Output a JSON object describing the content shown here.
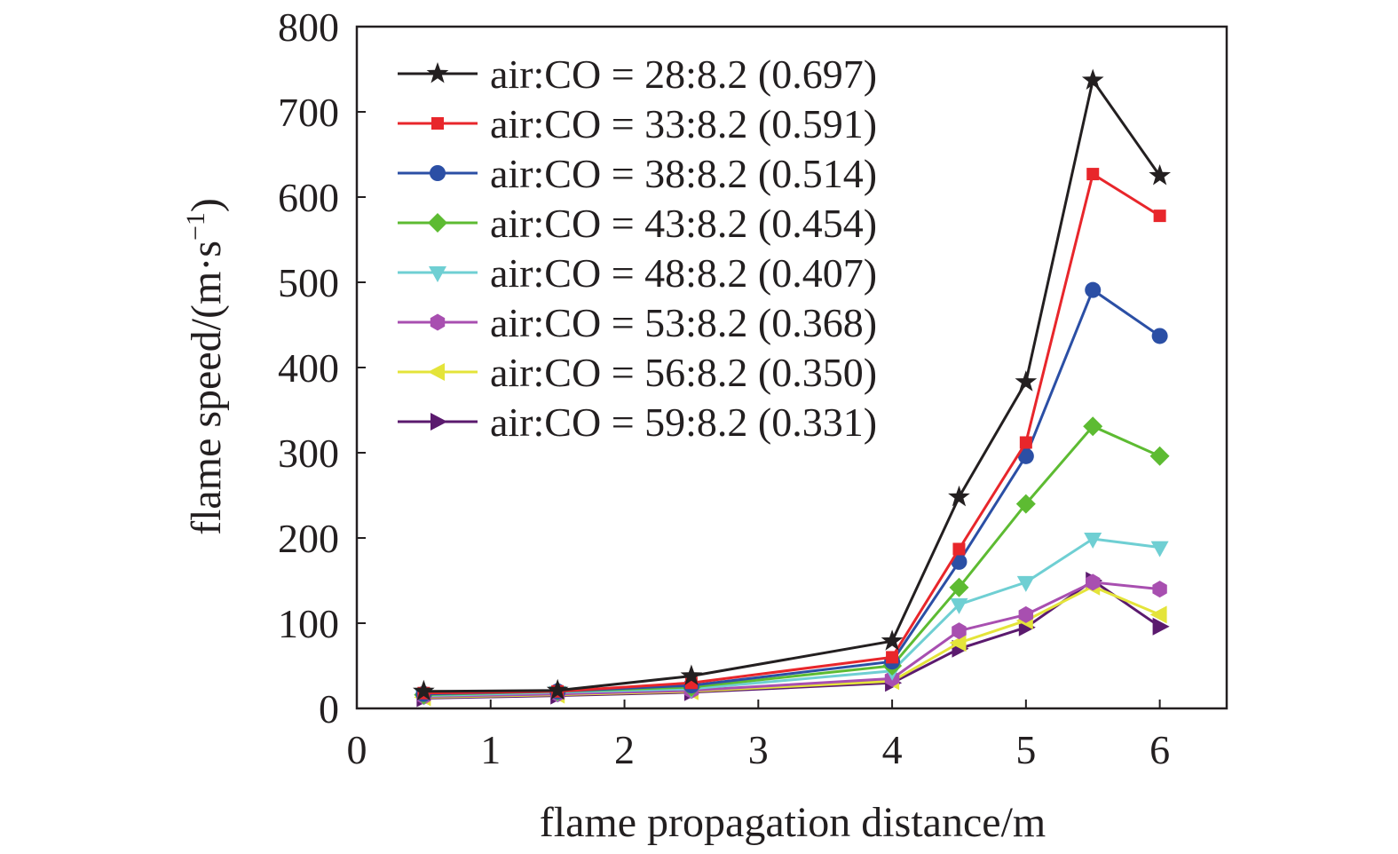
{
  "chart_data": {
    "type": "line",
    "xlabel": "flame propagation distance/m",
    "ylabel_main": "flame speed/(m·s",
    "ylabel_sup": "−1",
    "ylabel_close": ")",
    "xlim": [
      0,
      6.5
    ],
    "ylim": [
      0,
      800
    ],
    "xticks": [
      "0",
      "1",
      "2",
      "3",
      "4",
      "5",
      "6"
    ],
    "yticks": [
      "0",
      "100",
      "200",
      "300",
      "400",
      "500",
      "600",
      "700",
      "800"
    ],
    "grid": false,
    "legend_position": "top-left",
    "x": [
      0.5,
      1.5,
      2.5,
      4,
      4.5,
      5,
      5.5,
      6
    ],
    "series": [
      {
        "name": "air:CO = 28:8.2 (0.697)",
        "color": "#231f20",
        "marker": "star",
        "values": [
          20,
          21,
          38,
          79,
          248,
          383,
          737,
          625
        ]
      },
      {
        "name": "air:CO = 33:8.2 (0.591)",
        "color": "#e8262b",
        "marker": "square",
        "values": [
          18,
          20,
          30,
          60,
          187,
          312,
          627,
          578
        ]
      },
      {
        "name": "air:CO = 38:8.2 (0.514)",
        "color": "#2b4fa5",
        "marker": "circle",
        "values": [
          17,
          20,
          27,
          55,
          172,
          296,
          491,
          437
        ]
      },
      {
        "name": "air:CO = 43:8.2 (0.454)",
        "color": "#5dbb32",
        "marker": "diamond",
        "values": [
          16,
          20,
          25,
          50,
          142,
          240,
          331,
          296
        ]
      },
      {
        "name": "air:CO = 48:8.2 (0.407)",
        "color": "#6fcfd3",
        "marker": "triangle-down",
        "values": [
          15,
          19,
          23,
          44,
          122,
          148,
          199,
          189
        ]
      },
      {
        "name": "air:CO = 53:8.2 (0.368)",
        "color": "#a84fb0",
        "marker": "hexagon",
        "values": [
          14,
          17,
          21,
          35,
          91,
          110,
          148,
          140
        ]
      },
      {
        "name": "air:CO = 56:8.2 (0.350)",
        "color": "#e4e43a",
        "marker": "triangle-left",
        "values": [
          13,
          16,
          20,
          32,
          77,
          103,
          143,
          110
        ]
      },
      {
        "name": "air:CO = 59:8.2 (0.331)",
        "color": "#5b1a6e",
        "marker": "triangle-right",
        "values": [
          12,
          15,
          19,
          30,
          70,
          95,
          150,
          96
        ]
      }
    ]
  }
}
